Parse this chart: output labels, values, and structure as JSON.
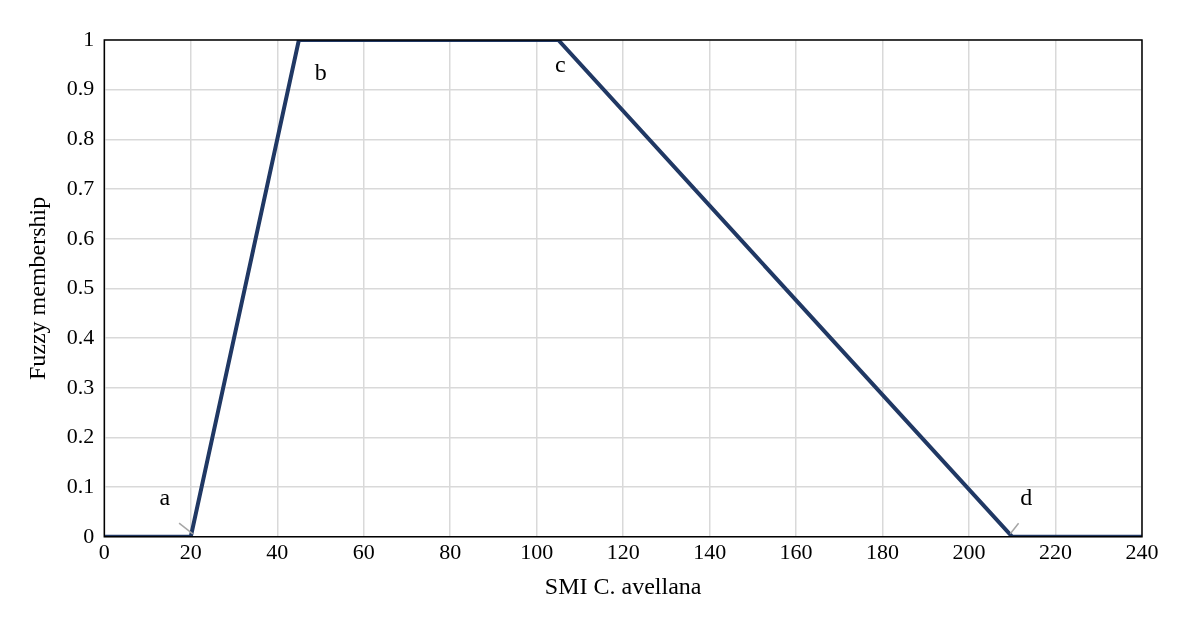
{
  "chart_data": {
    "type": "line",
    "xlabel": "SMI C. avellana",
    "ylabel": "Fuzzy membership",
    "x": [
      0,
      20,
      45,
      105,
      210,
      240
    ],
    "series": [
      {
        "color": "#203864",
        "values": [
          0,
          0,
          1,
          1,
          0,
          0
        ]
      }
    ],
    "xlim": [
      0,
      240
    ],
    "xticks": [
      0,
      20,
      40,
      60,
      80,
      100,
      120,
      140,
      160,
      180,
      200,
      220,
      240
    ],
    "ylim": [
      0,
      1
    ],
    "yticks": [
      0,
      0.1,
      0.2,
      0.3,
      0.4,
      0.5,
      0.6,
      0.7,
      0.8,
      0.9,
      1
    ],
    "grid": true,
    "legend": false,
    "marker": "none",
    "line_style": "solid",
    "annotations": [
      {
        "text": "a",
        "x": 20,
        "y": 0
      },
      {
        "text": "b",
        "x": 45,
        "y": 1
      },
      {
        "text": "c",
        "x": 105,
        "y": 1
      },
      {
        "text": "d",
        "x": 210,
        "y": 0
      }
    ]
  }
}
